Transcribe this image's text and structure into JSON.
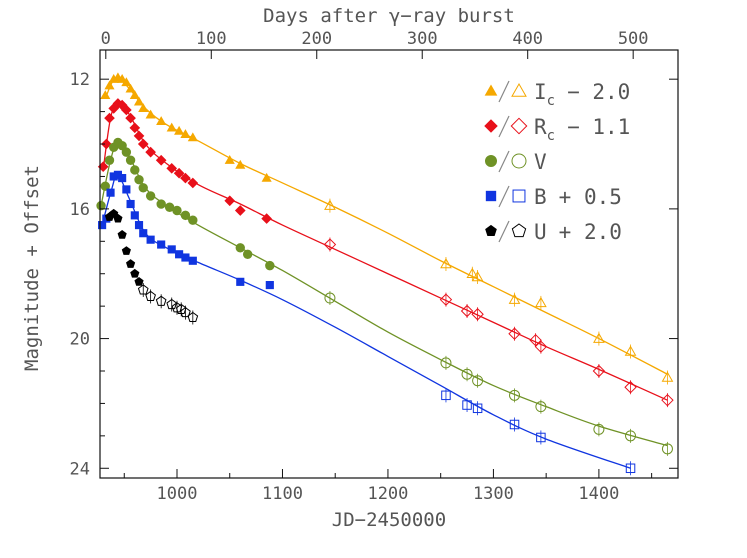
{
  "chart_data": {
    "type": "scatter",
    "title": "",
    "xlabel": "JD−2450000",
    "ylabel": "Magnitude + Offset",
    "top_xlabel": "Days after γ−ray burst",
    "xlim": [
      927,
      1475
    ],
    "ylim": [
      24.3,
      11.1
    ],
    "x_ticks": [
      1000,
      1100,
      1200,
      1300,
      1400
    ],
    "y_ticks": [
      12,
      16,
      20,
      24
    ],
    "top_ticks": [
      0,
      100,
      200,
      300,
      400,
      500
    ],
    "top_axis_offset": 932.5,
    "legend_position": "top-right",
    "series": [
      {
        "name": "Ic",
        "sub": "c",
        "base": "I",
        "offset_text": "− 2.0",
        "color": "#f5a800",
        "marker": "triangle",
        "points": [
          [
            932,
            12.5
          ],
          [
            936,
            12.2
          ],
          [
            940,
            12.0
          ],
          [
            944,
            11.95
          ],
          [
            948,
            12.0
          ],
          [
            952,
            12.1
          ],
          [
            956,
            12.3
          ],
          [
            960,
            12.5
          ],
          [
            964,
            12.7
          ],
          [
            968,
            12.9
          ],
          [
            975,
            13.1
          ],
          [
            985,
            13.3
          ],
          [
            995,
            13.5
          ],
          [
            1002,
            13.6
          ],
          [
            1008,
            13.7
          ],
          [
            1015,
            13.8
          ],
          [
            1050,
            14.5
          ],
          [
            1060,
            14.65
          ],
          [
            1085,
            15.05
          ],
          [
            1145,
            15.9
          ],
          [
            1255,
            17.7
          ],
          [
            1280,
            18.0
          ],
          [
            1285,
            18.1
          ],
          [
            1320,
            18.8
          ],
          [
            1345,
            18.9
          ],
          [
            1400,
            20.0
          ],
          [
            1430,
            20.4
          ],
          [
            1465,
            21.2
          ]
        ],
        "fit": [
          [
            932,
            12.6
          ],
          [
            942,
            11.95
          ],
          [
            955,
            12.3
          ],
          [
            970,
            12.9
          ],
          [
            990,
            13.4
          ],
          [
            1020,
            13.9
          ],
          [
            1060,
            14.6
          ],
          [
            1100,
            15.2
          ],
          [
            1150,
            15.95
          ],
          [
            1200,
            16.75
          ],
          [
            1250,
            17.6
          ],
          [
            1300,
            18.4
          ],
          [
            1350,
            19.2
          ],
          [
            1400,
            20.0
          ],
          [
            1465,
            21.1
          ]
        ],
        "filled_until": 1100
      },
      {
        "name": "Rc",
        "sub": "c",
        "base": "R",
        "offset_text": "− 1.1",
        "color": "#e8101a",
        "marker": "diamond",
        "points": [
          [
            930,
            14.7
          ],
          [
            933,
            14.0
          ],
          [
            936,
            13.2
          ],
          [
            940,
            12.9
          ],
          [
            944,
            12.75
          ],
          [
            948,
            12.8
          ],
          [
            952,
            12.95
          ],
          [
            956,
            13.2
          ],
          [
            960,
            13.5
          ],
          [
            964,
            13.75
          ],
          [
            968,
            14.0
          ],
          [
            975,
            14.25
          ],
          [
            985,
            14.5
          ],
          [
            995,
            14.75
          ],
          [
            1002,
            14.9
          ],
          [
            1008,
            15.05
          ],
          [
            1015,
            15.2
          ],
          [
            1050,
            15.75
          ],
          [
            1060,
            16.05
          ],
          [
            1085,
            16.3
          ],
          [
            1145,
            17.1
          ],
          [
            1255,
            18.8
          ],
          [
            1275,
            19.15
          ],
          [
            1285,
            19.25
          ],
          [
            1320,
            19.85
          ],
          [
            1340,
            20.05
          ],
          [
            1345,
            20.25
          ],
          [
            1400,
            21.0
          ],
          [
            1430,
            21.5
          ],
          [
            1465,
            21.9
          ]
        ],
        "fit": [
          [
            930,
            14.8
          ],
          [
            937,
            13.2
          ],
          [
            944,
            12.75
          ],
          [
            955,
            13.1
          ],
          [
            970,
            14.0
          ],
          [
            990,
            14.6
          ],
          [
            1020,
            15.25
          ],
          [
            1060,
            15.85
          ],
          [
            1100,
            16.5
          ],
          [
            1150,
            17.25
          ],
          [
            1200,
            18.0
          ],
          [
            1250,
            18.75
          ],
          [
            1300,
            19.5
          ],
          [
            1350,
            20.25
          ],
          [
            1400,
            20.95
          ],
          [
            1465,
            21.9
          ]
        ],
        "filled_until": 1100
      },
      {
        "name": "V",
        "sub": "",
        "base": "V",
        "offset_text": "",
        "color": "#6f9226",
        "marker": "circle",
        "points": [
          [
            928,
            15.9
          ],
          [
            932,
            15.3
          ],
          [
            936,
            14.5
          ],
          [
            940,
            14.1
          ],
          [
            944,
            13.95
          ],
          [
            948,
            14.05
          ],
          [
            952,
            14.25
          ],
          [
            956,
            14.5
          ],
          [
            960,
            14.8
          ],
          [
            964,
            15.1
          ],
          [
            968,
            15.35
          ],
          [
            975,
            15.6
          ],
          [
            985,
            15.85
          ],
          [
            993,
            15.95
          ],
          [
            1000,
            16.05
          ],
          [
            1008,
            16.2
          ],
          [
            1015,
            16.35
          ],
          [
            1060,
            17.2
          ],
          [
            1067,
            17.4
          ],
          [
            1088,
            17.75
          ],
          [
            1145,
            18.75
          ],
          [
            1255,
            20.75
          ],
          [
            1275,
            21.1
          ],
          [
            1285,
            21.3
          ],
          [
            1320,
            21.75
          ],
          [
            1345,
            22.1
          ],
          [
            1400,
            22.8
          ],
          [
            1430,
            23.0
          ],
          [
            1465,
            23.4
          ]
        ],
        "fit": [
          [
            928,
            15.9
          ],
          [
            937,
            14.5
          ],
          [
            944,
            13.95
          ],
          [
            955,
            14.4
          ],
          [
            970,
            15.35
          ],
          [
            990,
            15.9
          ],
          [
            1020,
            16.5
          ],
          [
            1060,
            17.2
          ],
          [
            1100,
            17.9
          ],
          [
            1150,
            18.85
          ],
          [
            1200,
            19.8
          ],
          [
            1250,
            20.65
          ],
          [
            1300,
            21.45
          ],
          [
            1350,
            22.1
          ],
          [
            1400,
            22.7
          ],
          [
            1465,
            23.3
          ]
        ],
        "filled_until": 1100
      },
      {
        "name": "B",
        "sub": "",
        "base": "B",
        "offset_text": "+ 0.5",
        "color": "#1035e0",
        "marker": "square",
        "points": [
          [
            929,
            16.5
          ],
          [
            933,
            16.3
          ],
          [
            937,
            15.5
          ],
          [
            940,
            15.0
          ],
          [
            944,
            14.95
          ],
          [
            948,
            15.05
          ],
          [
            952,
            15.4
          ],
          [
            956,
            15.85
          ],
          [
            960,
            16.2
          ],
          [
            964,
            16.5
          ],
          [
            968,
            16.75
          ],
          [
            975,
            16.95
          ],
          [
            985,
            17.1
          ],
          [
            995,
            17.25
          ],
          [
            1002,
            17.4
          ],
          [
            1008,
            17.5
          ],
          [
            1015,
            17.6
          ],
          [
            1060,
            18.25
          ],
          [
            1088,
            18.35
          ],
          [
            1255,
            21.75
          ],
          [
            1275,
            22.05
          ],
          [
            1285,
            22.15
          ],
          [
            1320,
            22.65
          ],
          [
            1345,
            23.05
          ],
          [
            1430,
            24.0
          ]
        ],
        "fit": [
          [
            929,
            16.5
          ],
          [
            938,
            15.4
          ],
          [
            944,
            14.95
          ],
          [
            955,
            15.7
          ],
          [
            970,
            16.75
          ],
          [
            990,
            17.2
          ],
          [
            1020,
            17.65
          ],
          [
            1060,
            18.2
          ],
          [
            1100,
            18.8
          ],
          [
            1150,
            19.65
          ],
          [
            1200,
            20.55
          ],
          [
            1250,
            21.45
          ],
          [
            1300,
            22.35
          ],
          [
            1350,
            23.1
          ],
          [
            1430,
            24.0
          ]
        ],
        "filled_until": 1100
      },
      {
        "name": "U",
        "sub": "",
        "base": "U",
        "offset_text": "+ 2.0",
        "color": "#000000",
        "marker": "pentagon",
        "points": [
          [
            936,
            16.25
          ],
          [
            940,
            16.15
          ],
          [
            944,
            16.3
          ],
          [
            948,
            16.8
          ],
          [
            952,
            17.3
          ],
          [
            956,
            17.7
          ],
          [
            960,
            18.0
          ],
          [
            964,
            18.25
          ],
          [
            968,
            18.5
          ],
          [
            975,
            18.7
          ],
          [
            985,
            18.85
          ],
          [
            995,
            18.95
          ],
          [
            1000,
            19.05
          ],
          [
            1004,
            19.1
          ],
          [
            1008,
            19.2
          ],
          [
            1015,
            19.35
          ]
        ],
        "fit": [],
        "filled_until": 966
      }
    ]
  }
}
